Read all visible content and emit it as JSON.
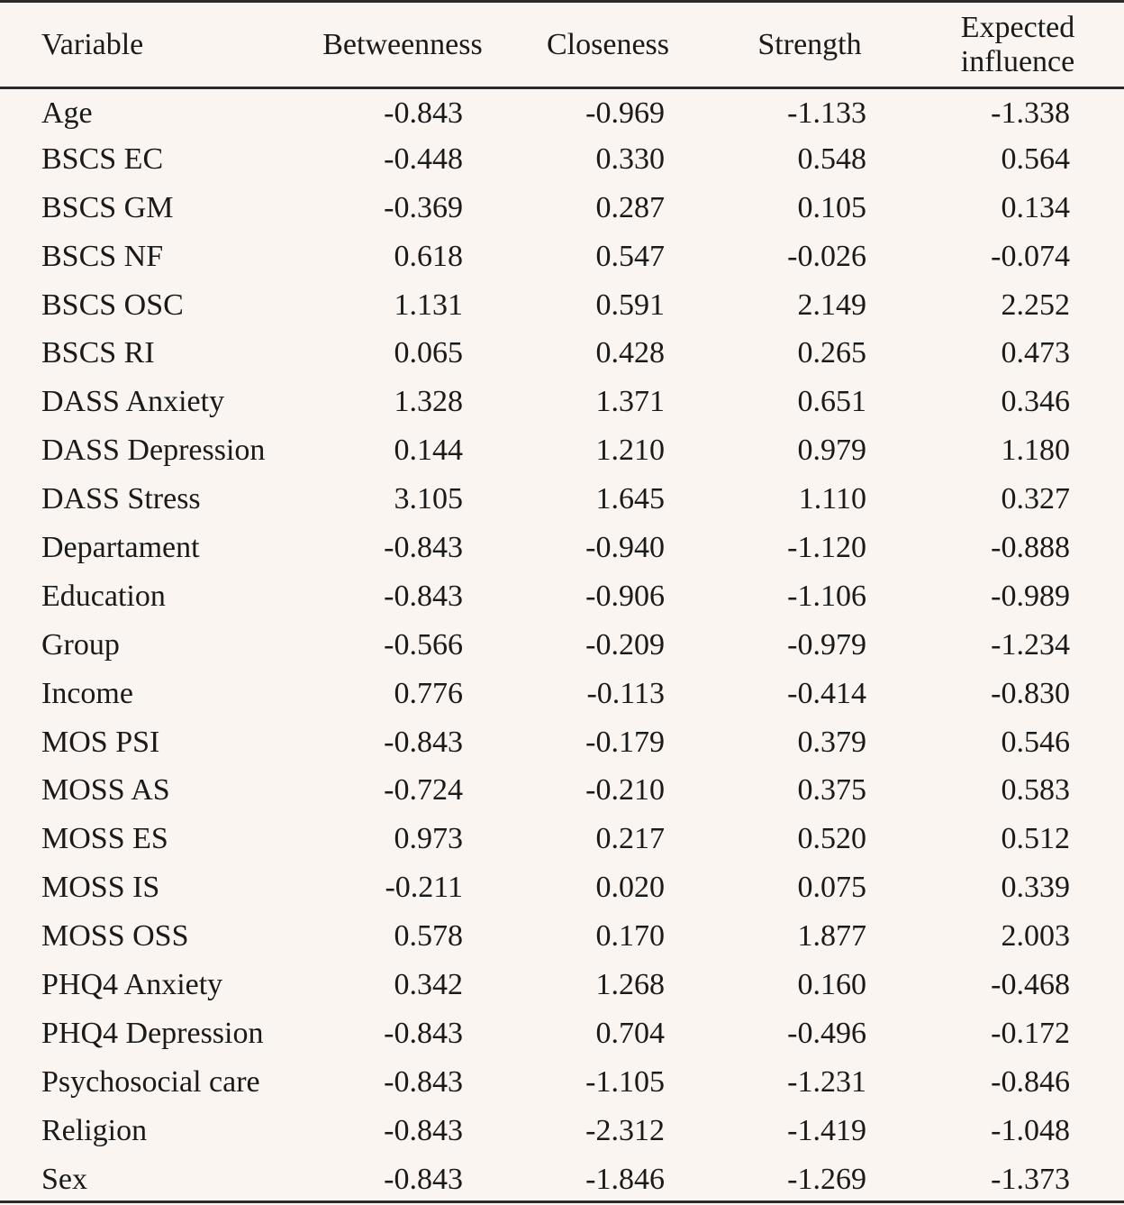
{
  "table": {
    "headers": [
      "Variable",
      "Betweenness",
      "Closeness",
      "Strength",
      "Expected influence"
    ],
    "rows": [
      [
        "Age",
        "-0.843",
        "-0.969",
        "-1.133",
        "-1.338"
      ],
      [
        "BSCS EC",
        "-0.448",
        "0.330",
        "0.548",
        "0.564"
      ],
      [
        "BSCS GM",
        "-0.369",
        "0.287",
        "0.105",
        "0.134"
      ],
      [
        "BSCS NF",
        "0.618",
        "0.547",
        "-0.026",
        "-0.074"
      ],
      [
        "BSCS OSC",
        "1.131",
        "0.591",
        "2.149",
        "2.252"
      ],
      [
        "BSCS RI",
        "0.065",
        "0.428",
        "0.265",
        "0.473"
      ],
      [
        "DASS Anxiety",
        "1.328",
        "1.371",
        "0.651",
        "0.346"
      ],
      [
        "DASS Depression",
        "0.144",
        "1.210",
        "0.979",
        "1.180"
      ],
      [
        "DASS Stress",
        "3.105",
        "1.645",
        "1.110",
        "0.327"
      ],
      [
        "Departament",
        "-0.843",
        "-0.940",
        "-1.120",
        "-0.888"
      ],
      [
        "Education",
        "-0.843",
        "-0.906",
        "-1.106",
        "-0.989"
      ],
      [
        "Group",
        "-0.566",
        "-0.209",
        "-0.979",
        "-1.234"
      ],
      [
        "Income",
        "0.776",
        "-0.113",
        "-0.414",
        "-0.830"
      ],
      [
        "MOS PSI",
        "-0.843",
        "-0.179",
        "0.379",
        "0.546"
      ],
      [
        "MOSS AS",
        "-0.724",
        "-0.210",
        "0.375",
        "0.583"
      ],
      [
        "MOSS ES",
        "0.973",
        "0.217",
        "0.520",
        "0.512"
      ],
      [
        "MOSS IS",
        "-0.211",
        "0.020",
        "0.075",
        "0.339"
      ],
      [
        "MOSS OSS",
        "0.578",
        "0.170",
        "1.877",
        "2.003"
      ],
      [
        "PHQ4 Anxiety",
        "0.342",
        "1.268",
        "0.160",
        "-0.468"
      ],
      [
        "PHQ4 Depression",
        "-0.843",
        "0.704",
        "-0.496",
        "-0.172"
      ],
      [
        "Psychosocial care",
        "-0.843",
        "-1.105",
        "-1.231",
        "-0.846"
      ],
      [
        "Religion",
        "-0.843",
        "-2.312",
        "-1.419",
        "-1.048"
      ],
      [
        "Sex",
        "-0.843",
        "-1.846",
        "-1.269",
        "-1.373"
      ]
    ]
  }
}
